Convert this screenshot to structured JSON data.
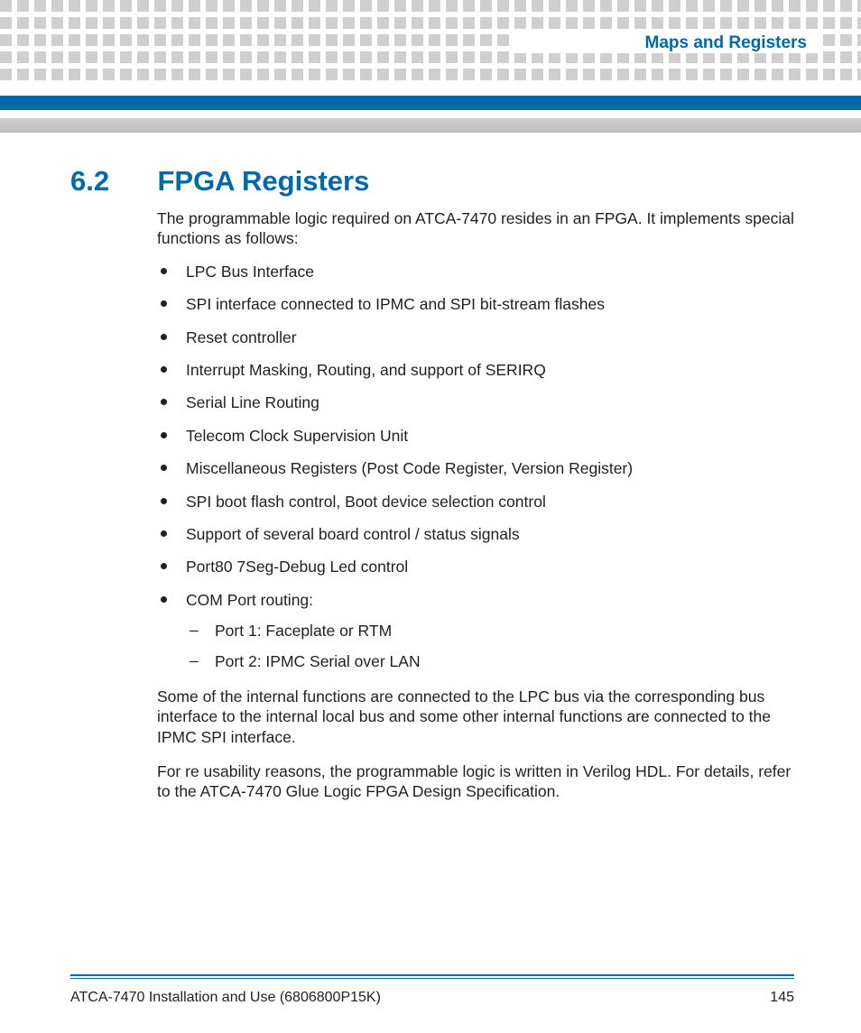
{
  "colors": {
    "accent": "#0069aa",
    "text": "#231f20",
    "dot": "#cfcfcf",
    "bg": "#ffffff"
  },
  "header": {
    "running_title": "Maps and Registers"
  },
  "section": {
    "number": "6.2",
    "title": "FPGA Registers",
    "intro": "The programmable logic required on ATCA-7470 resides in an FPGA. It implements special functions as follows:",
    "bullets": [
      "LPC Bus Interface",
      "SPI interface connected to IPMC and SPI bit-stream flashes",
      "Reset controller",
      "Interrupt Masking, Routing, and support of SERIRQ",
      "Serial Line Routing",
      "Telecom Clock Supervision Unit",
      "Miscellaneous Registers (Post Code Register, Version Register)",
      "SPI boot flash control, Boot device selection control",
      "Support of several board control / status signals",
      "Port80 7Seg-Debug Led control",
      "COM Port routing:"
    ],
    "com_port_sub": [
      "Port 1: Faceplate or RTM",
      "Port 2: IPMC Serial over LAN"
    ],
    "para2": "Some of the internal functions are connected to the LPC bus via the corresponding bus interface to the internal local bus and some other internal functions are connected to the IPMC SPI interface.",
    "para3": "For re usability reasons, the programmable logic is written in Verilog HDL. For details, refer to the ATCA-7470 Glue Logic FPGA Design Specification."
  },
  "footer": {
    "doc_title": "ATCA-7470 Installation and Use (6806800P15K)",
    "page_number": "145"
  }
}
